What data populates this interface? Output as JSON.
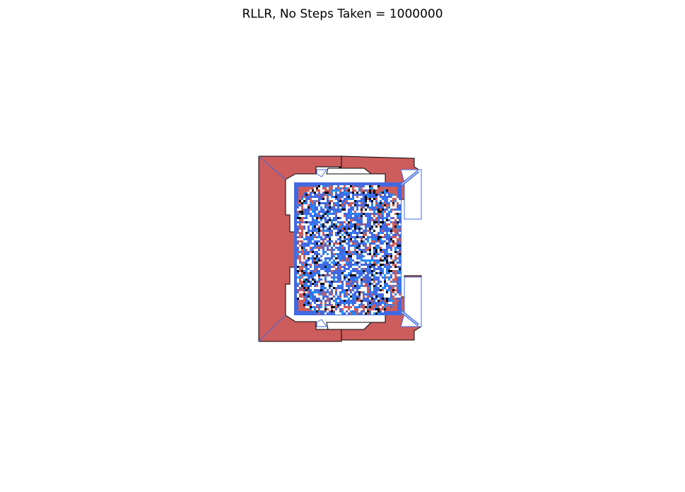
{
  "figure": {
    "title": "RLLR, No Steps Taken = 1000000"
  },
  "colors": {
    "state_0": "#ffffff",
    "state_1": "#cd5c5c",
    "state_2": "#000000",
    "state_3": "#4169e1",
    "state_4": "#1e90ff"
  }
}
